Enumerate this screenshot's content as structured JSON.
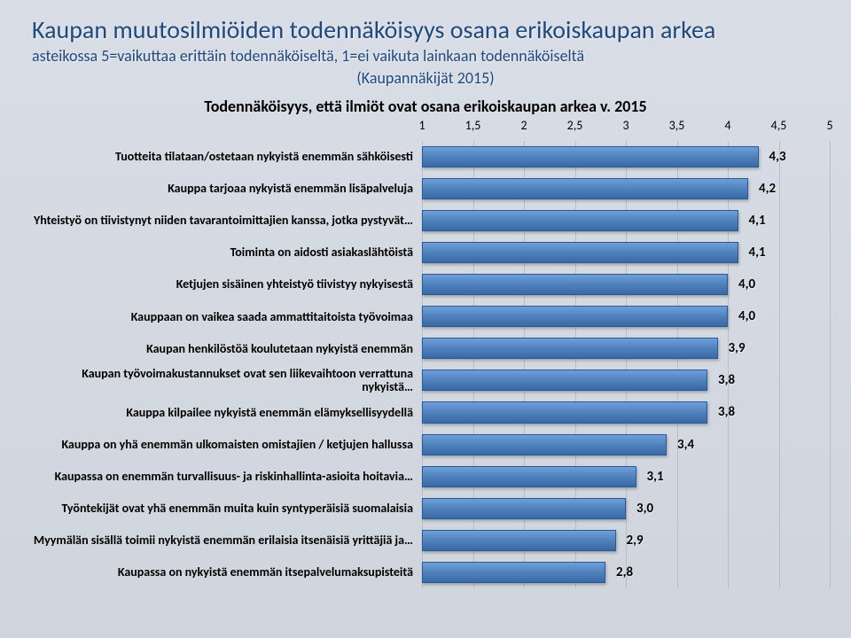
{
  "header": {
    "title": "Kaupan muutosilmiöiden todennäköisyys osana erikoiskaupan arkea",
    "subtitle_line1": "asteikossa 5=vaikuttaa erittäin todennäköiseltä, 1=ei vaikuta lainkaan todennäköiseltä",
    "subtitle_line2": "(Kaupannäkijät 2015)"
  },
  "chart": {
    "type": "bar-horizontal",
    "title": "Todennäköisyys, että ilmiöt ovat osana erikoiskaupan arkea v. 2015",
    "xmin": 1,
    "xmax": 5,
    "ticks": [
      "1",
      "1,5",
      "2",
      "2,5",
      "3",
      "3,5",
      "4",
      "4,5",
      "5"
    ],
    "tick_values": [
      1,
      1.5,
      2,
      2.5,
      3,
      3.5,
      4,
      4.5,
      5
    ],
    "bar_color": "#4f81bd",
    "grid_color": "#b8bdc6",
    "label_fontsize": 14,
    "value_fontsize": 15,
    "items": [
      {
        "label": "Tuotteita tilataan/ostetaan nykyistä enemmän sähköisesti",
        "value": 4.3,
        "display": "4,3"
      },
      {
        "label": "Kauppa tarjoaa nykyistä enemmän lisäpalveluja",
        "value": 4.2,
        "display": "4,2"
      },
      {
        "label": "Yhteistyö on tiivistynyt niiden tavarantoimittajien kanssa, jotka pystyvät…",
        "value": 4.1,
        "display": "4,1"
      },
      {
        "label": "Toiminta on aidosti asiakaslähtöistä",
        "value": 4.1,
        "display": "4,1"
      },
      {
        "label": "Ketjujen sisäinen yhteistyö tiivistyy nykyisestä",
        "value": 4.0,
        "display": "4,0"
      },
      {
        "label": "Kauppaan on vaikea saada ammattitaitoista työvoimaa",
        "value": 4.0,
        "display": "4,0"
      },
      {
        "label": "Kaupan henkilöstöä koulutetaan nykyistä enemmän",
        "value": 3.9,
        "display": "3,9"
      },
      {
        "label": "Kaupan työvoimakustannukset ovat sen liikevaihtoon verrattuna nykyistä…",
        "value": 3.8,
        "display": "3,8"
      },
      {
        "label": "Kauppa kilpailee nykyistä enemmän elämyksellisyydellä",
        "value": 3.8,
        "display": "3,8"
      },
      {
        "label": "Kauppa on yhä enemmän ulkomaisten omistajien / ketjujen hallussa",
        "value": 3.4,
        "display": "3,4"
      },
      {
        "label": "Kaupassa on enemmän turvallisuus- ja riskinhallinta-asioita hoitavia…",
        "value": 3.1,
        "display": "3,1"
      },
      {
        "label": "Työntekijät ovat yhä enemmän muita kuin syntyperäisiä suomalaisia",
        "value": 3.0,
        "display": "3,0"
      },
      {
        "label": "Myymälän sisällä toimii nykyistä enemmän erilaisia itsenäisiä yrittäjiä ja…",
        "value": 2.9,
        "display": "2,9"
      },
      {
        "label": "Kaupassa on nykyistä enemmän itsepalvelumaksupisteitä",
        "value": 2.8,
        "display": "2,8"
      }
    ]
  }
}
